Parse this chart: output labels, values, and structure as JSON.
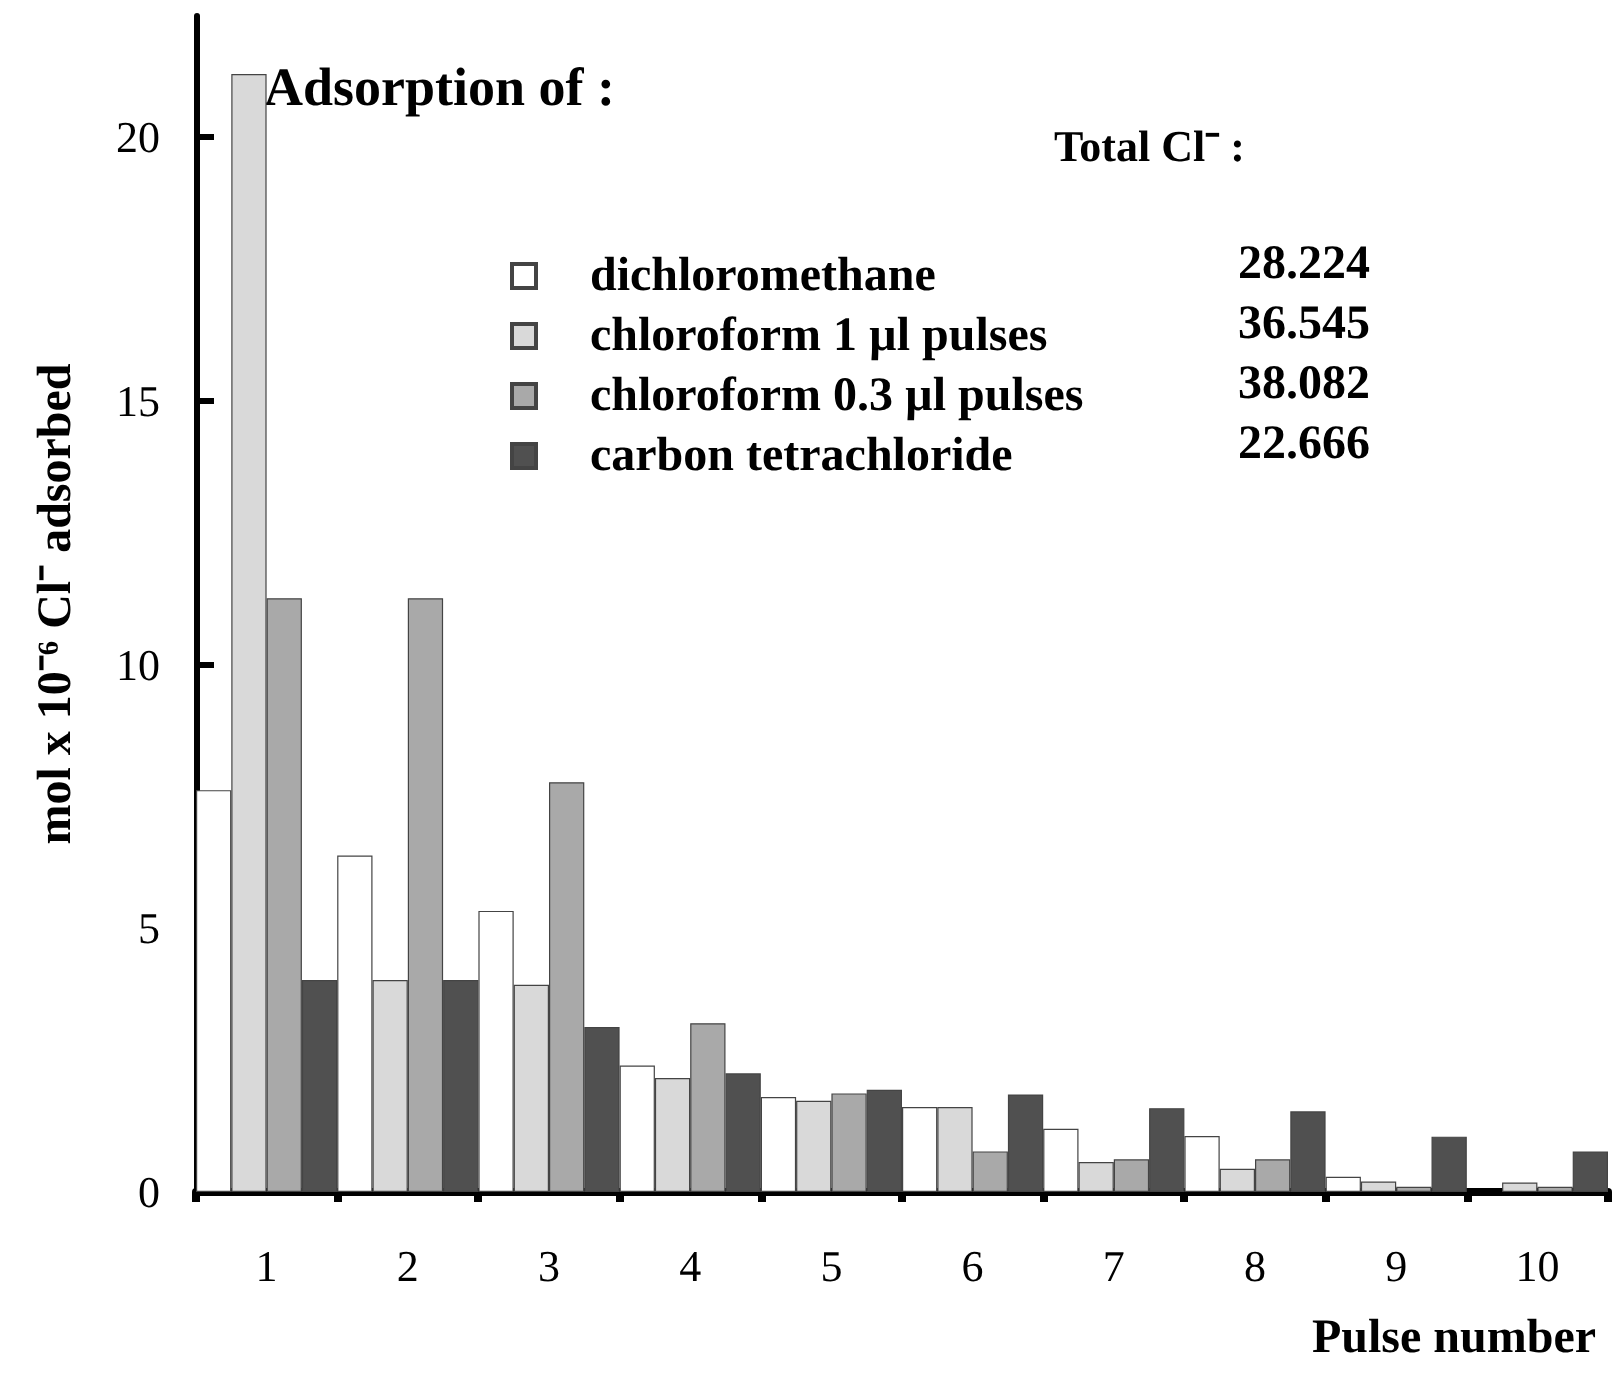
{
  "chart_data": {
    "type": "bar",
    "categories": [
      "1",
      "2",
      "3",
      "4",
      "5",
      "6",
      "7",
      "8",
      "9",
      "10"
    ],
    "series": [
      {
        "name": "dichloromethane",
        "color": "#ffffff",
        "values": [
          7.62,
          6.38,
          5.33,
          2.4,
          1.8,
          1.61,
          1.2,
          1.06,
          0.29,
          null
        ]
      },
      {
        "name": "chloroform 1 µl pulses",
        "color": "#d9d9d9",
        "values": [
          21.2,
          4.02,
          3.93,
          2.16,
          1.73,
          1.61,
          0.57,
          0.44,
          0.2,
          0.18
        ]
      },
      {
        "name": "chloroform 0.3 µl pulses",
        "color": "#a9a9a9",
        "values": [
          11.26,
          11.26,
          7.77,
          3.2,
          1.87,
          0.77,
          0.62,
          0.62,
          0.1,
          0.1
        ]
      },
      {
        "name": "carbon tetrachloride",
        "color": "#505050",
        "values": [
          4.02,
          4.02,
          3.13,
          2.25,
          1.94,
          1.85,
          1.59,
          1.53,
          1.05,
          0.77
        ]
      }
    ],
    "xlabel": "Pulse number",
    "ylabel": "mol x 10⁻⁶ Cl⁻ adsorbed",
    "legend_title": "Adsorption of :",
    "annotations": [
      "Total Cl⁻ :",
      "28.224",
      "36.545",
      "38.082",
      "22.666"
    ],
    "ylim": [
      0,
      22.3
    ],
    "yticks": [
      0,
      5,
      10,
      15,
      20
    ],
    "grid": false,
    "legend": "top"
  }
}
